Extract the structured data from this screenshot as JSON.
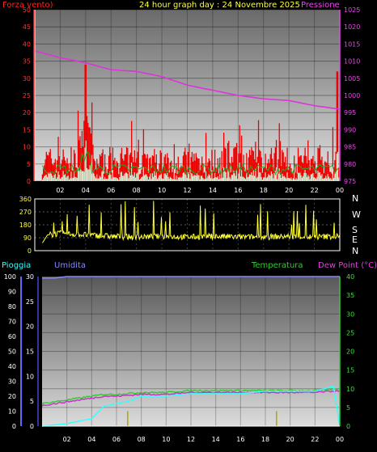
{
  "header": {
    "left_label": "Forza vento)",
    "title": "24 hour graph day : 24 Novembre 2025",
    "right_label": "Pressione"
  },
  "compass": {
    "letters": [
      "N",
      "W",
      "S",
      "E",
      "N"
    ]
  },
  "bottom_header": {
    "rain_label": "Pioggia",
    "humidity_label": "Umidita",
    "temp_label": "Temperatura",
    "dew_label": "Dew Point (°C)"
  },
  "colors": {
    "wind": "#ff0000",
    "gust": "#ee0000",
    "avg_wind": "#22aa22",
    "pressure": "#dd33dd",
    "direction": "#ffff33",
    "humidity": "#8888ff",
    "temperature": "#33cc33",
    "dewpoint": "#cc33cc",
    "rain": "#33ffff",
    "rain_rate": "#aaaa00"
  },
  "chart_data": [
    {
      "type": "area",
      "title": "24 hour graph day : 24 Novembre 2025",
      "x_ticks": [
        "02",
        "04",
        "06",
        "08",
        "10",
        "12",
        "14",
        "16",
        "18",
        "20",
        "22",
        "00"
      ],
      "y_left_label": "Forza vento)",
      "y_left_ticks": [
        0,
        5,
        10,
        15,
        20,
        25,
        30,
        35,
        40,
        45,
        50
      ],
      "y_left_lim": [
        0,
        50
      ],
      "y_right_label": "Pressione",
      "y_right_ticks": [
        975,
        980,
        985,
        990,
        995,
        1000,
        1005,
        1010,
        1015,
        1020,
        1025
      ],
      "y_right_lim": [
        975,
        1025
      ],
      "series": [
        {
          "name": "Pressione",
          "axis": "right",
          "x": [
            0,
            2,
            4,
            6,
            8,
            10,
            12,
            14,
            16,
            18,
            20,
            22,
            24
          ],
          "values": [
            1013,
            1011,
            1009.5,
            1007.5,
            1007,
            1005.5,
            1003,
            1001.5,
            1000,
            999,
            998.5,
            997,
            996
          ]
        },
        {
          "name": "gust_peaks",
          "axis": "left",
          "x": [
            4,
            23.8
          ],
          "values": [
            34,
            32
          ]
        }
      ]
    },
    {
      "type": "line",
      "x_ticks": [
        "02",
        "04",
        "06",
        "08",
        "10",
        "12",
        "14",
        "16",
        "18",
        "20",
        "22",
        "00"
      ],
      "y_ticks": [
        0,
        90,
        180,
        270,
        360
      ],
      "y_lim": [
        0,
        360
      ],
      "series": [
        {
          "x": [
            0,
            0.5,
            1,
            2,
            4,
            6,
            8,
            10,
            12,
            14,
            16,
            18,
            20,
            22,
            24
          ],
          "values": [
            0,
            40,
            110,
            120,
            110,
            100,
            95,
            100,
            95,
            100,
            95,
            95,
            100,
            95,
            100
          ]
        }
      ]
    },
    {
      "type": "line",
      "x_ticks": [
        "02",
        "04",
        "06",
        "08",
        "10",
        "12",
        "14",
        "16",
        "18",
        "20",
        "22",
        "00"
      ],
      "y_far_left_ticks": [
        0,
        10,
        20,
        30,
        40,
        50,
        60,
        70,
        80,
        90,
        100
      ],
      "y_far_left_lim": [
        0,
        100
      ],
      "y_left_ticks": [
        0,
        5,
        10,
        15,
        20,
        25,
        30
      ],
      "y_left_lim": [
        0,
        30
      ],
      "y_right_ticks": [
        0,
        5,
        10,
        15,
        20,
        25,
        30,
        35,
        40
      ],
      "y_right_lim": [
        0,
        40
      ],
      "series": [
        {
          "name": "Umidita",
          "axis": "far_left",
          "x": [
            0,
            1,
            2,
            24
          ],
          "values": [
            99,
            99,
            100,
            100
          ]
        },
        {
          "name": "Temperatura",
          "axis": "right",
          "x": [
            0,
            2,
            3,
            4,
            5,
            6,
            8,
            10,
            12,
            14,
            16,
            18,
            20,
            22,
            24
          ],
          "values": [
            6,
            7,
            7.5,
            8,
            8.5,
            8.5,
            9,
            9,
            9.5,
            9.5,
            9.5,
            9.5,
            9.5,
            9.5,
            10
          ]
        },
        {
          "name": "Dew Point",
          "axis": "right",
          "x": [
            0,
            2,
            3,
            4,
            5,
            6,
            8,
            10,
            12,
            14,
            16,
            18,
            20,
            22,
            24
          ],
          "values": [
            5.5,
            6.5,
            7,
            7.5,
            8,
            8,
            8.5,
            8.5,
            9,
            9,
            9,
            9,
            9,
            9,
            9.5
          ]
        },
        {
          "name": "Pioggia",
          "axis": "left",
          "x": [
            0,
            2,
            3,
            4,
            5,
            6,
            7,
            8,
            10,
            12,
            14,
            16,
            18,
            20,
            22,
            23.5,
            24
          ],
          "values": [
            0,
            0.5,
            1,
            1.5,
            4,
            4.5,
            5,
            6,
            6,
            6.5,
            6.5,
            6.5,
            7,
            7,
            7,
            8,
            0
          ]
        },
        {
          "name": "rain_rate",
          "axis": "left",
          "x": [
            6.9,
            18.9
          ],
          "values": [
            3,
            3
          ]
        }
      ]
    }
  ]
}
